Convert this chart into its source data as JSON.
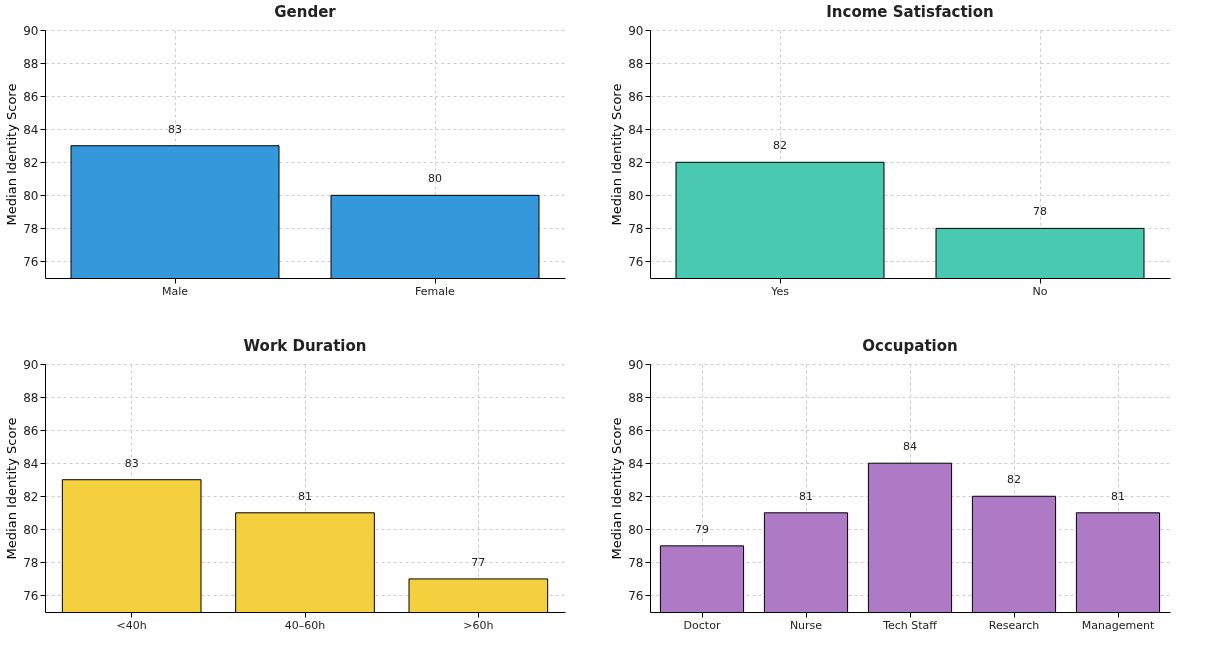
{
  "chart_data": [
    {
      "type": "bar",
      "title": "Gender",
      "ylabel": "Median Identity Score",
      "categories": [
        "Male",
        "Female"
      ],
      "values": [
        83,
        80
      ],
      "color": "#3498db",
      "ylim": [
        75,
        90
      ],
      "yticks": [
        76,
        78,
        80,
        82,
        84,
        86,
        88,
        90
      ],
      "grid": true,
      "data_labels": true
    },
    {
      "type": "bar",
      "title": "Income Satisfaction",
      "ylabel": "Median Identity Score",
      "categories": [
        "Yes",
        "No"
      ],
      "values": [
        82,
        78
      ],
      "color": "#48c9b0",
      "ylim": [
        75,
        90
      ],
      "yticks": [
        76,
        78,
        80,
        82,
        84,
        86,
        88,
        90
      ],
      "grid": true,
      "data_labels": true
    },
    {
      "type": "bar",
      "title": "Work Duration",
      "ylabel": "Median Identity Score",
      "categories": [
        "<40h",
        "40–60h",
        ">60h"
      ],
      "values": [
        83,
        81,
        77
      ],
      "color": "#f4d03f",
      "ylim": [
        75,
        90
      ],
      "yticks": [
        76,
        78,
        80,
        82,
        84,
        86,
        88,
        90
      ],
      "grid": true,
      "data_labels": true
    },
    {
      "type": "bar",
      "title": "Occupation",
      "ylabel": "Median Identity Score",
      "categories": [
        "Doctor",
        "Nurse",
        "Tech Staff",
        "Research",
        "Management"
      ],
      "values": [
        79,
        81,
        84,
        82,
        81
      ],
      "color": "#af7ac5",
      "ylim": [
        75,
        90
      ],
      "yticks": [
        76,
        78,
        80,
        82,
        84,
        86,
        88,
        90
      ],
      "grid": true,
      "data_labels": true
    }
  ]
}
